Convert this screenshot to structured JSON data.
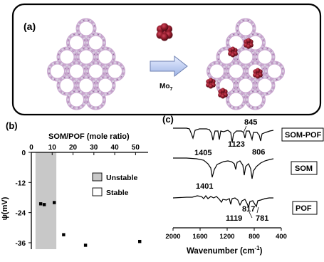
{
  "panel_a": {
    "label": "(a)",
    "arrow_label_main": "Mo",
    "arrow_label_sub": "7",
    "colors": {
      "frame": "#000000",
      "ring": "#c9a6cf",
      "ring_dark": "#8a6a94",
      "node": "#d8cde0",
      "cluster": "#8e1a2a",
      "cluster_dark": "#4e0c16",
      "arrow": "#b9c8ee"
    }
  },
  "panel_b": {
    "label": "(b)",
    "x_title": "SOM/POF (mole ratio)",
    "y_title": "ψ(mV)",
    "legend": {
      "unstable": "Unstable",
      "stable": "Stable"
    },
    "chart_data": {
      "type": "scatter",
      "x_ticks": [
        "0",
        "10",
        "20",
        "30",
        "40",
        "50"
      ],
      "y_ticks": [
        "0",
        "-12",
        "-24",
        "-36"
      ],
      "xlim": [
        0,
        55
      ],
      "ylim": [
        -38,
        0
      ],
      "unstable_range": [
        2,
        12
      ],
      "points": [
        {
          "x": 4.5,
          "y": -20.5
        },
        {
          "x": 6.2,
          "y": -20.8
        },
        {
          "x": 11.0,
          "y": -20.0
        },
        {
          "x": 15.5,
          "y": -32.8
        },
        {
          "x": 26.0,
          "y": -37.0
        },
        {
          "x": 52.0,
          "y": -35.5
        }
      ]
    }
  },
  "panel_c": {
    "label": "(c)",
    "x_title": "Wavenumber (cm",
    "x_title_sup": "-1",
    "x_title_end": ")",
    "x_ticks": [
      "2000",
      "1600",
      "1200",
      "800",
      "400"
    ],
    "xlim": [
      2000,
      400
    ],
    "curves": [
      {
        "label": "SOM-POF",
        "peaks": [
          "845",
          "1123",
          "1405",
          "806"
        ]
      },
      {
        "label": "SOM",
        "peaks": [
          "1401"
        ]
      },
      {
        "label": "POF",
        "peaks": [
          "1119",
          "817",
          "781"
        ]
      }
    ]
  }
}
